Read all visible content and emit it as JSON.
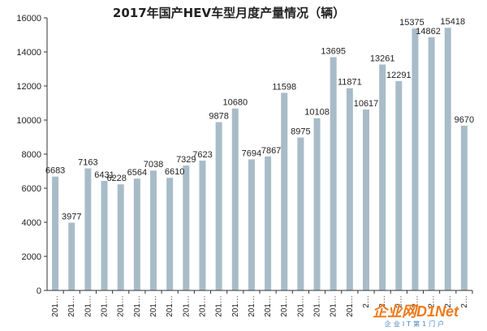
{
  "chart_data": {
    "type": "bar",
    "title": "2017年国产HEV车型月度产量情况（辆）",
    "xlabel": "",
    "ylabel": "",
    "ylim": [
      0,
      16000
    ],
    "yticks": [
      0,
      2000,
      4000,
      6000,
      8000,
      10000,
      12000,
      14000,
      16000
    ],
    "categories": [
      "201…",
      "201…",
      "201…",
      "201…",
      "201…",
      "201…",
      "201…",
      "201…",
      "201…",
      "201…",
      "201…",
      "201…",
      "201…",
      "201…",
      "201…",
      "201…",
      "201…",
      "201…",
      "201…",
      "2…",
      "2…",
      "2…",
      "2…",
      "2…",
      "2…",
      "2…"
    ],
    "values": [
      6683,
      3977,
      7163,
      6431,
      6228,
      6564,
      7038,
      6610,
      7329,
      7623,
      9878,
      10680,
      7694,
      7867,
      11598,
      8975,
      10108,
      13695,
      11871,
      10617,
      13261,
      12291,
      15375,
      14862,
      15418,
      9670
    ],
    "grid": false,
    "legend": "none",
    "bar_color": "#a8bcc8"
  },
  "watermark": {
    "brand": "企业网D1Net",
    "sub": "企业IT第1门户",
    "brand_color": "#f07a1a",
    "sub_color": "#3a7fc0"
  }
}
